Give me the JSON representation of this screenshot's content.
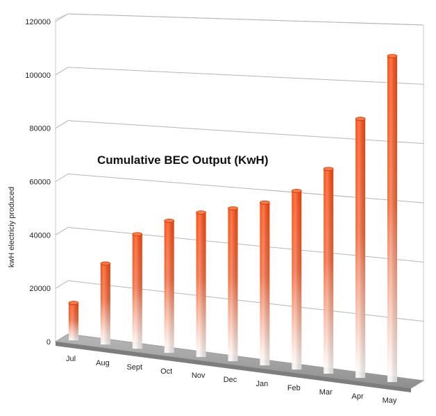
{
  "chart_data": {
    "type": "bar",
    "title": "Cumulative BEC Output (KwH)",
    "ylabel": "kwH electriciy produced",
    "xlabel": "",
    "footer_mark": "_",
    "categories": [
      "Jul",
      "Aug",
      "Sept",
      "Oct",
      "Nov",
      "Dec",
      "Jan",
      "Feb",
      "Mar",
      "Apr",
      "May"
    ],
    "values": [
      14000,
      30000,
      42000,
      48000,
      52000,
      54500,
      57500,
      62500,
      71000,
      89000,
      111000
    ],
    "ylim": [
      0,
      120000
    ],
    "yticks": [
      "0",
      "20000",
      "40000",
      "60000",
      "80000",
      "100000",
      "120000"
    ],
    "ytick_values": [
      0,
      20000,
      40000,
      60000,
      80000,
      100000,
      120000
    ],
    "grid": true,
    "legend": "none",
    "colors": {
      "bar_top": "#ff4a0e",
      "bar_fade": "#ffffff",
      "floor": "#a9a9a9",
      "gridline": "#b5b5b5"
    }
  }
}
